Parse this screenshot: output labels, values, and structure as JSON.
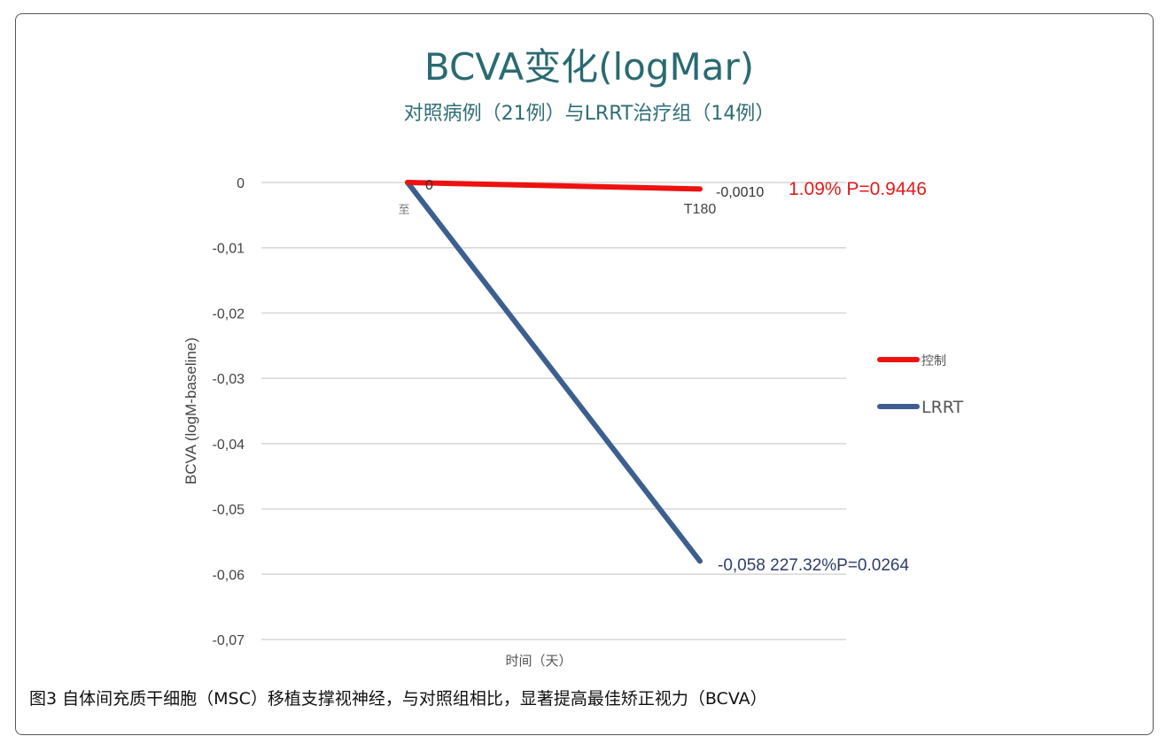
{
  "caption": "图3 自体间充质干细胞（MSC）移植支撑视神经，与对照组相比，显著提高最佳矫正视力（BCVA）",
  "chart_data": {
    "type": "line",
    "title": "BCVA变化(logMar)",
    "subtitle": "对照病例（21例）与LRRT治疗组（14例）",
    "xlabel": "时间（天）",
    "ylabel": "BCVA (logM-baseline)",
    "categories": [
      "至",
      "T180"
    ],
    "ylim": [
      -0.07,
      0
    ],
    "yticks": [
      "0",
      "-0,01",
      "-0,02",
      "-0,03",
      "-0,04",
      "-0,05",
      "-0,06",
      "-0,07"
    ],
    "grid": true,
    "legend_position": "right",
    "series": [
      {
        "name": "控制",
        "color": "#ee1111",
        "values": [
          0,
          -0.001
        ],
        "labels": [
          "0",
          "-0,0010"
        ],
        "annotation": "1.09% P=0.9446"
      },
      {
        "name": "LRRT",
        "color": "#3c5f8f",
        "values": [
          0,
          -0.058
        ],
        "labels": [
          "",
          "-0,058 227.32%P=0.0264"
        ],
        "annotation": ""
      }
    ]
  }
}
